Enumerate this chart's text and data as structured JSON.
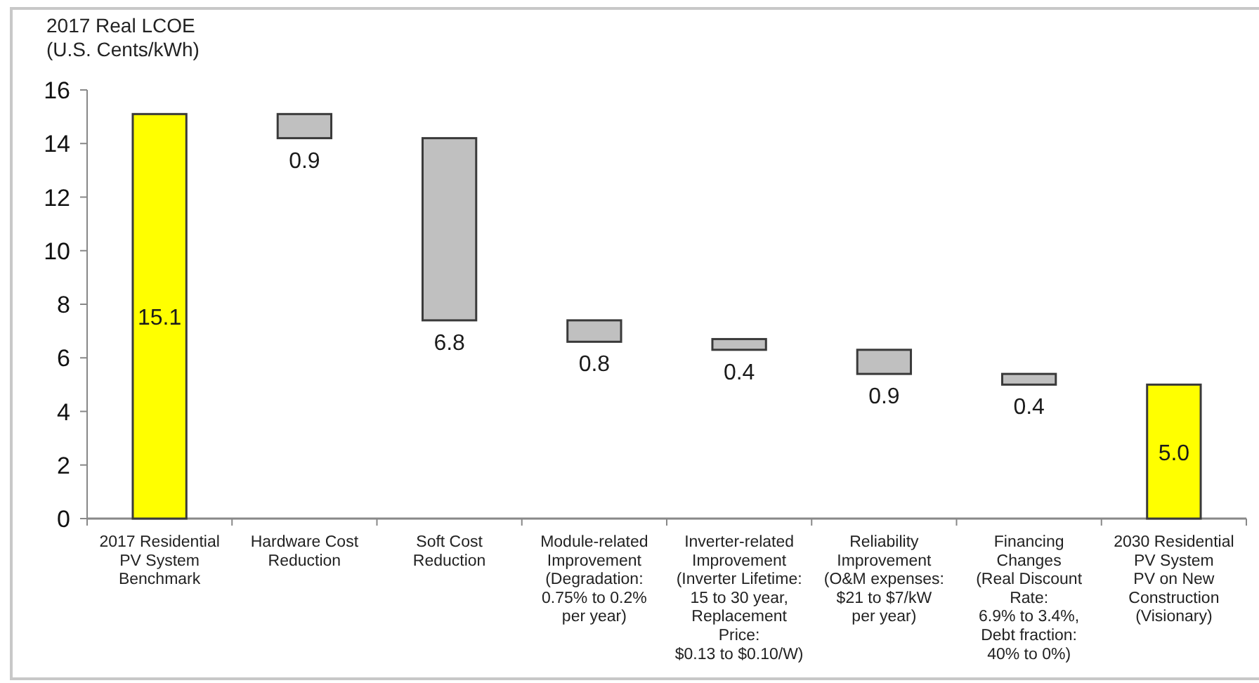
{
  "chart_data": {
    "type": "bar",
    "ylabel": "2017 Real LCOE\n(U.S. Cents/kWh)",
    "categories": [
      "2017 Residential\nPV System\nBenchmark",
      "Hardware Cost\nReduction",
      "Soft Cost\nReduction",
      "Module-related\nImprovement\n(Degradation:\n0.75% to 0.2%\nper year)",
      "Inverter-related\nImprovement\n(Inverter Lifetime:\n15 to 30 year,\nReplacement\nPrice:\n$0.13 to $0.10/W)",
      "Reliability\nImprovement\n(O&M expenses:\n$21 to $7/kW\nper year)",
      "Financing\nChanges\n(Real Discount\nRate:\n6.9% to 3.4%,\nDebt fraction:\n40% to 0%)",
      "2030 Residential\nPV System\nPV on New\nConstruction\n(Visionary)"
    ],
    "values": [
      15.1,
      0.9,
      6.8,
      0.8,
      0.4,
      0.9,
      0.4,
      5.0
    ],
    "base": [
      0,
      14.2,
      7.4,
      6.6,
      6.3,
      5.4,
      5.0,
      0
    ],
    "colors": [
      "#ffff00",
      "#c0c0c0",
      "#c0c0c0",
      "#c0c0c0",
      "#c0c0c0",
      "#c0c0c0",
      "#c0c0c0",
      "#ffff00"
    ],
    "value_labels": [
      "15.1",
      "0.9",
      "6.8",
      "0.8",
      "0.4",
      "0.9",
      "0.4",
      "5.0"
    ],
    "ylim": [
      0,
      16
    ],
    "yticks": [
      0,
      2,
      4,
      6,
      8,
      10,
      12,
      14,
      16
    ]
  }
}
